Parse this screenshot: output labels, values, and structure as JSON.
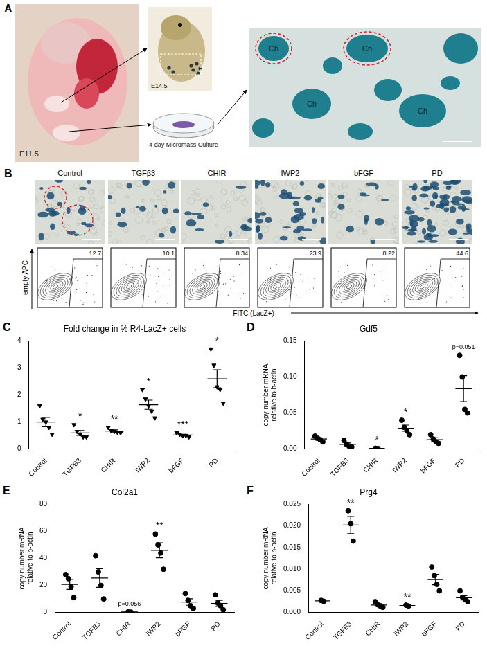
{
  "panel_a": {
    "letter": "A",
    "stages": [
      "E11.5",
      "E14.5"
    ],
    "culture": "4 day Micromass Culture",
    "nodules": [
      "Ch",
      "Ch",
      "Ch",
      "Ch"
    ]
  },
  "panel_b": {
    "letter": "B",
    "conditions": [
      "Control",
      "TGFβ3",
      "CHIR",
      "IWP2",
      "bFGF",
      "PD"
    ],
    "lacz_positive_percent": [
      12.7,
      10.1,
      8.34,
      23.9,
      8.22,
      44.6
    ],
    "y_label": "empty APC",
    "x_label": "FITC (LacZ+)"
  },
  "chart_data": [
    {
      "panel": "C",
      "type": "scatter",
      "title": "Fold change in % R4-LacZ+ cells",
      "categories": [
        "Control",
        "TGFB3",
        "CHIR",
        "IWP2",
        "bFGF",
        "PD"
      ],
      "points": [
        [
          1.6,
          1.1,
          1.0,
          0.8,
          0.55
        ],
        [
          0.9,
          0.65,
          0.55,
          0.45,
          0.45
        ],
        [
          0.8,
          0.68,
          0.65,
          0.62,
          0.6
        ],
        [
          2.2,
          1.85,
          1.6,
          1.4,
          1.15
        ],
        [
          0.6,
          0.55,
          0.5,
          0.5,
          0.45
        ],
        [
          3.7,
          3.1,
          2.3,
          2.2,
          1.7
        ]
      ],
      "mean": [
        1.0,
        0.6,
        0.67,
        1.64,
        0.52,
        2.6
      ],
      "sem": [
        0.17,
        0.09,
        0.04,
        0.17,
        0.03,
        0.33
      ],
      "annotations": [
        null,
        "*",
        "**",
        "*",
        "***",
        "*"
      ],
      "ylim": [
        0,
        4
      ],
      "yticks": [
        0,
        1,
        2,
        3,
        4
      ],
      "grid": false,
      "marker": "triangle_down",
      "color": "#000000"
    },
    {
      "panel": "D",
      "type": "scatter",
      "title": "Gdf5",
      "ylabel": "copy number mRNA relative to b-actin",
      "categories": [
        "Control",
        "TGFB3",
        "CHIR",
        "IWP2",
        "bFGF",
        "PD"
      ],
      "points": [
        [
          0.018,
          0.015,
          0.013,
          0.01
        ],
        [
          0.012,
          0.007,
          0.004,
          0.003
        ],
        [
          0.0012,
          0.0008
        ],
        [
          0.04,
          0.03,
          0.025,
          0.02
        ],
        [
          0.02,
          0.014,
          0.01,
          0.008
        ],
        [
          0.13,
          0.1,
          0.055,
          0.05
        ]
      ],
      "mean": [
        0.014,
        0.0065,
        0.001,
        0.029,
        0.013,
        0.0838
      ],
      "sem": [
        0.0017,
        0.002,
        0.0002,
        0.0043,
        0.0026,
        0.018
      ],
      "annotations": [
        null,
        null,
        "*",
        "*",
        null,
        "p=0.051"
      ],
      "ylim": [
        0,
        0.15
      ],
      "yticks": [
        {
          "value": 0,
          "label": "0.00"
        },
        0.05,
        {
          "value": 0.1,
          "label": "0.10"
        },
        0.15
      ],
      "grid": false,
      "marker": "circle",
      "color": "#000000"
    },
    {
      "panel": "E",
      "type": "scatter",
      "title": "Col2a1",
      "ylabel": "copy number mRNA relative to b-actin",
      "categories": [
        "Control",
        "TGFB3",
        "CHIR",
        "IWP2",
        "bFGF",
        "PD"
      ],
      "points": [
        [
          28,
          25,
          19,
          11
        ],
        [
          42,
          30,
          20,
          10
        ],
        [
          0.5,
          0.3
        ],
        [
          58,
          50,
          44,
          32
        ],
        [
          14,
          9,
          5,
          3
        ],
        [
          13,
          7,
          5,
          2
        ]
      ],
      "mean": [
        20.75,
        25.5,
        0.4,
        46,
        7.75,
        6.75
      ],
      "sem": [
        3.7,
        6.9,
        0.1,
        5.5,
        2.4,
        2.3
      ],
      "annotations": [
        null,
        null,
        "p=0.056",
        "**",
        null,
        null
      ],
      "ylim": [
        0,
        80
      ],
      "yticks": [
        0,
        20,
        40,
        60,
        80
      ],
      "grid": false,
      "marker": "circle",
      "color": "#000000"
    },
    {
      "panel": "F",
      "type": "scatter",
      "title": "Prg4",
      "ylabel": "copy number mRNA relative to b-actin",
      "categories": [
        "Control",
        "TGFB3",
        "CHIR",
        "IWP2",
        "bFGF",
        "PD"
      ],
      "points": [
        [
          0.0028,
          0.0026
        ],
        [
          0.0235,
          0.0205,
          0.0165
        ],
        [
          0.0025,
          0.0018,
          0.0015,
          0.0012
        ],
        [
          0.0017,
          0.0015
        ],
        [
          0.0105,
          0.0085,
          0.0065,
          0.005
        ],
        [
          0.005,
          0.0035,
          0.003,
          0.0025
        ]
      ],
      "mean": [
        0.0027,
        0.0202,
        0.00175,
        0.0016,
        0.0076,
        0.0034
      ],
      "sem": [
        0.0001,
        0.002,
        0.0003,
        0.0001,
        0.0012,
        0.0005
      ],
      "annotations": [
        null,
        "**",
        null,
        "**",
        null,
        null
      ],
      "ylim": [
        0,
        0.025
      ],
      "yticks": [
        {
          "value": 0,
          "label": "0.000"
        },
        {
          "value": 0.005,
          "label": "0.005"
        },
        {
          "value": 0.01,
          "label": "0.010"
        },
        {
          "value": 0.015,
          "label": "0.015"
        },
        {
          "value": 0.02,
          "label": "0.020"
        },
        {
          "value": 0.025,
          "label": "0.025"
        }
      ],
      "grid": false,
      "marker": "circle",
      "color": "#000000"
    }
  ]
}
